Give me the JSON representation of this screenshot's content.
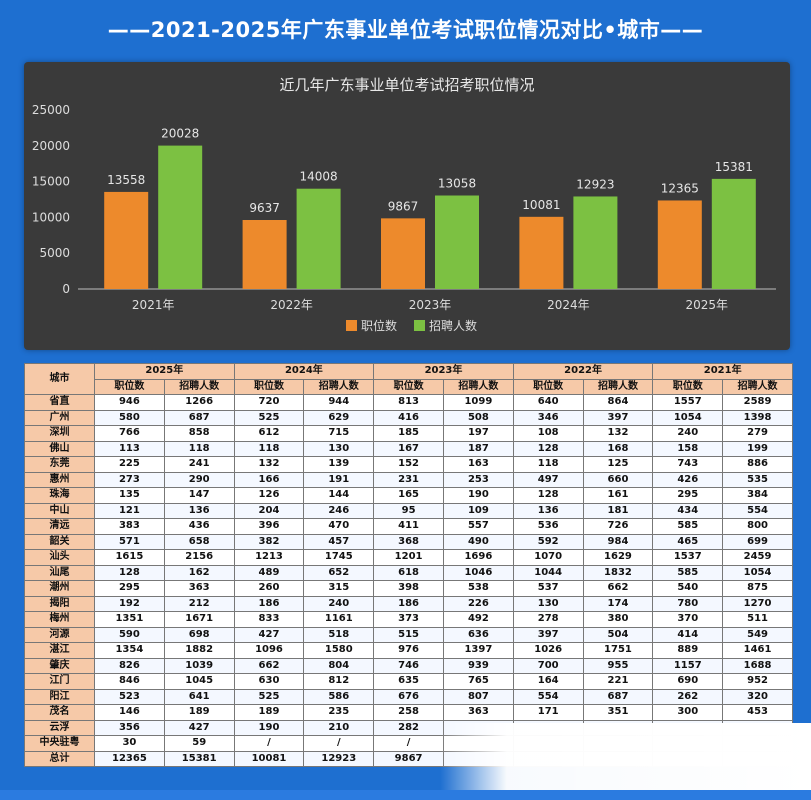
{
  "page_title": "——2021-2025年广东事业单位考试职位情况对比•城市——",
  "chart_data": {
    "type": "bar",
    "title": "近几年广东事业单位考试招考职位情况",
    "categories": [
      "2021年",
      "2022年",
      "2023年",
      "2024年",
      "2025年"
    ],
    "series": [
      {
        "name": "职位数",
        "values": [
          13558,
          9637,
          9867,
          10081,
          12365
        ],
        "color": "#ed8a2c"
      },
      {
        "name": "招聘人数",
        "values": [
          20028,
          14008,
          13058,
          12923,
          15381
        ],
        "color": "#7cc142"
      }
    ],
    "ylim": [
      0,
      25000
    ],
    "yticks": [
      0,
      5000,
      10000,
      15000,
      20000,
      25000
    ],
    "grid": false,
    "legend": "bottom"
  },
  "table": {
    "city_header": "城市",
    "years": [
      "2025年",
      "2024年",
      "2023年",
      "2022年",
      "2021年"
    ],
    "sub_headers": [
      "职位数",
      "招聘人数"
    ],
    "rows": [
      [
        "省直",
        "946",
        "1266",
        "720",
        "944",
        "813",
        "1099",
        "640",
        "864",
        "1557",
        "2589"
      ],
      [
        "广州",
        "580",
        "687",
        "525",
        "629",
        "416",
        "508",
        "346",
        "397",
        "1054",
        "1398"
      ],
      [
        "深圳",
        "766",
        "858",
        "612",
        "715",
        "185",
        "197",
        "108",
        "132",
        "240",
        "279"
      ],
      [
        "佛山",
        "113",
        "118",
        "118",
        "130",
        "167",
        "187",
        "128",
        "168",
        "158",
        "199"
      ],
      [
        "东莞",
        "225",
        "241",
        "132",
        "139",
        "152",
        "163",
        "118",
        "125",
        "743",
        "886"
      ],
      [
        "惠州",
        "273",
        "290",
        "166",
        "191",
        "231",
        "253",
        "497",
        "660",
        "426",
        "535"
      ],
      [
        "珠海",
        "135",
        "147",
        "126",
        "144",
        "165",
        "190",
        "128",
        "161",
        "295",
        "384"
      ],
      [
        "中山",
        "121",
        "136",
        "204",
        "246",
        "95",
        "109",
        "136",
        "181",
        "434",
        "554"
      ],
      [
        "清远",
        "383",
        "436",
        "396",
        "470",
        "411",
        "557",
        "536",
        "726",
        "585",
        "800"
      ],
      [
        "韶关",
        "571",
        "658",
        "382",
        "457",
        "368",
        "490",
        "592",
        "984",
        "465",
        "699"
      ],
      [
        "汕头",
        "1615",
        "2156",
        "1213",
        "1745",
        "1201",
        "1696",
        "1070",
        "1629",
        "1537",
        "2459"
      ],
      [
        "汕尾",
        "128",
        "162",
        "489",
        "652",
        "618",
        "1046",
        "1044",
        "1832",
        "585",
        "1054"
      ],
      [
        "潮州",
        "295",
        "363",
        "260",
        "315",
        "398",
        "538",
        "537",
        "662",
        "540",
        "875"
      ],
      [
        "揭阳",
        "192",
        "212",
        "186",
        "240",
        "186",
        "226",
        "130",
        "174",
        "780",
        "1270"
      ],
      [
        "梅州",
        "1351",
        "1671",
        "833",
        "1161",
        "373",
        "492",
        "278",
        "380",
        "370",
        "511"
      ],
      [
        "河源",
        "590",
        "698",
        "427",
        "518",
        "515",
        "636",
        "397",
        "504",
        "414",
        "549"
      ],
      [
        "湛江",
        "1354",
        "1882",
        "1096",
        "1580",
        "976",
        "1397",
        "1026",
        "1751",
        "889",
        "1461"
      ],
      [
        "肇庆",
        "826",
        "1039",
        "662",
        "804",
        "746",
        "939",
        "700",
        "955",
        "1157",
        "1688"
      ],
      [
        "江门",
        "846",
        "1045",
        "630",
        "812",
        "635",
        "765",
        "164",
        "221",
        "690",
        "952"
      ],
      [
        "阳江",
        "523",
        "641",
        "525",
        "586",
        "676",
        "807",
        "554",
        "687",
        "262",
        "320"
      ],
      [
        "茂名",
        "146",
        "189",
        "189",
        "235",
        "258",
        "363",
        "171",
        "351",
        "300",
        "453"
      ],
      [
        "云浮",
        "356",
        "427",
        "190",
        "210",
        "282",
        "",
        "",
        "",
        "",
        ""
      ],
      [
        "中央驻粤",
        "30",
        "59",
        "/",
        "/",
        "/",
        "",
        "",
        "",
        "",
        ""
      ],
      [
        "总计",
        "12365",
        "15381",
        "10081",
        "12923",
        "9867",
        "",
        "",
        "",
        "",
        ""
      ]
    ]
  }
}
